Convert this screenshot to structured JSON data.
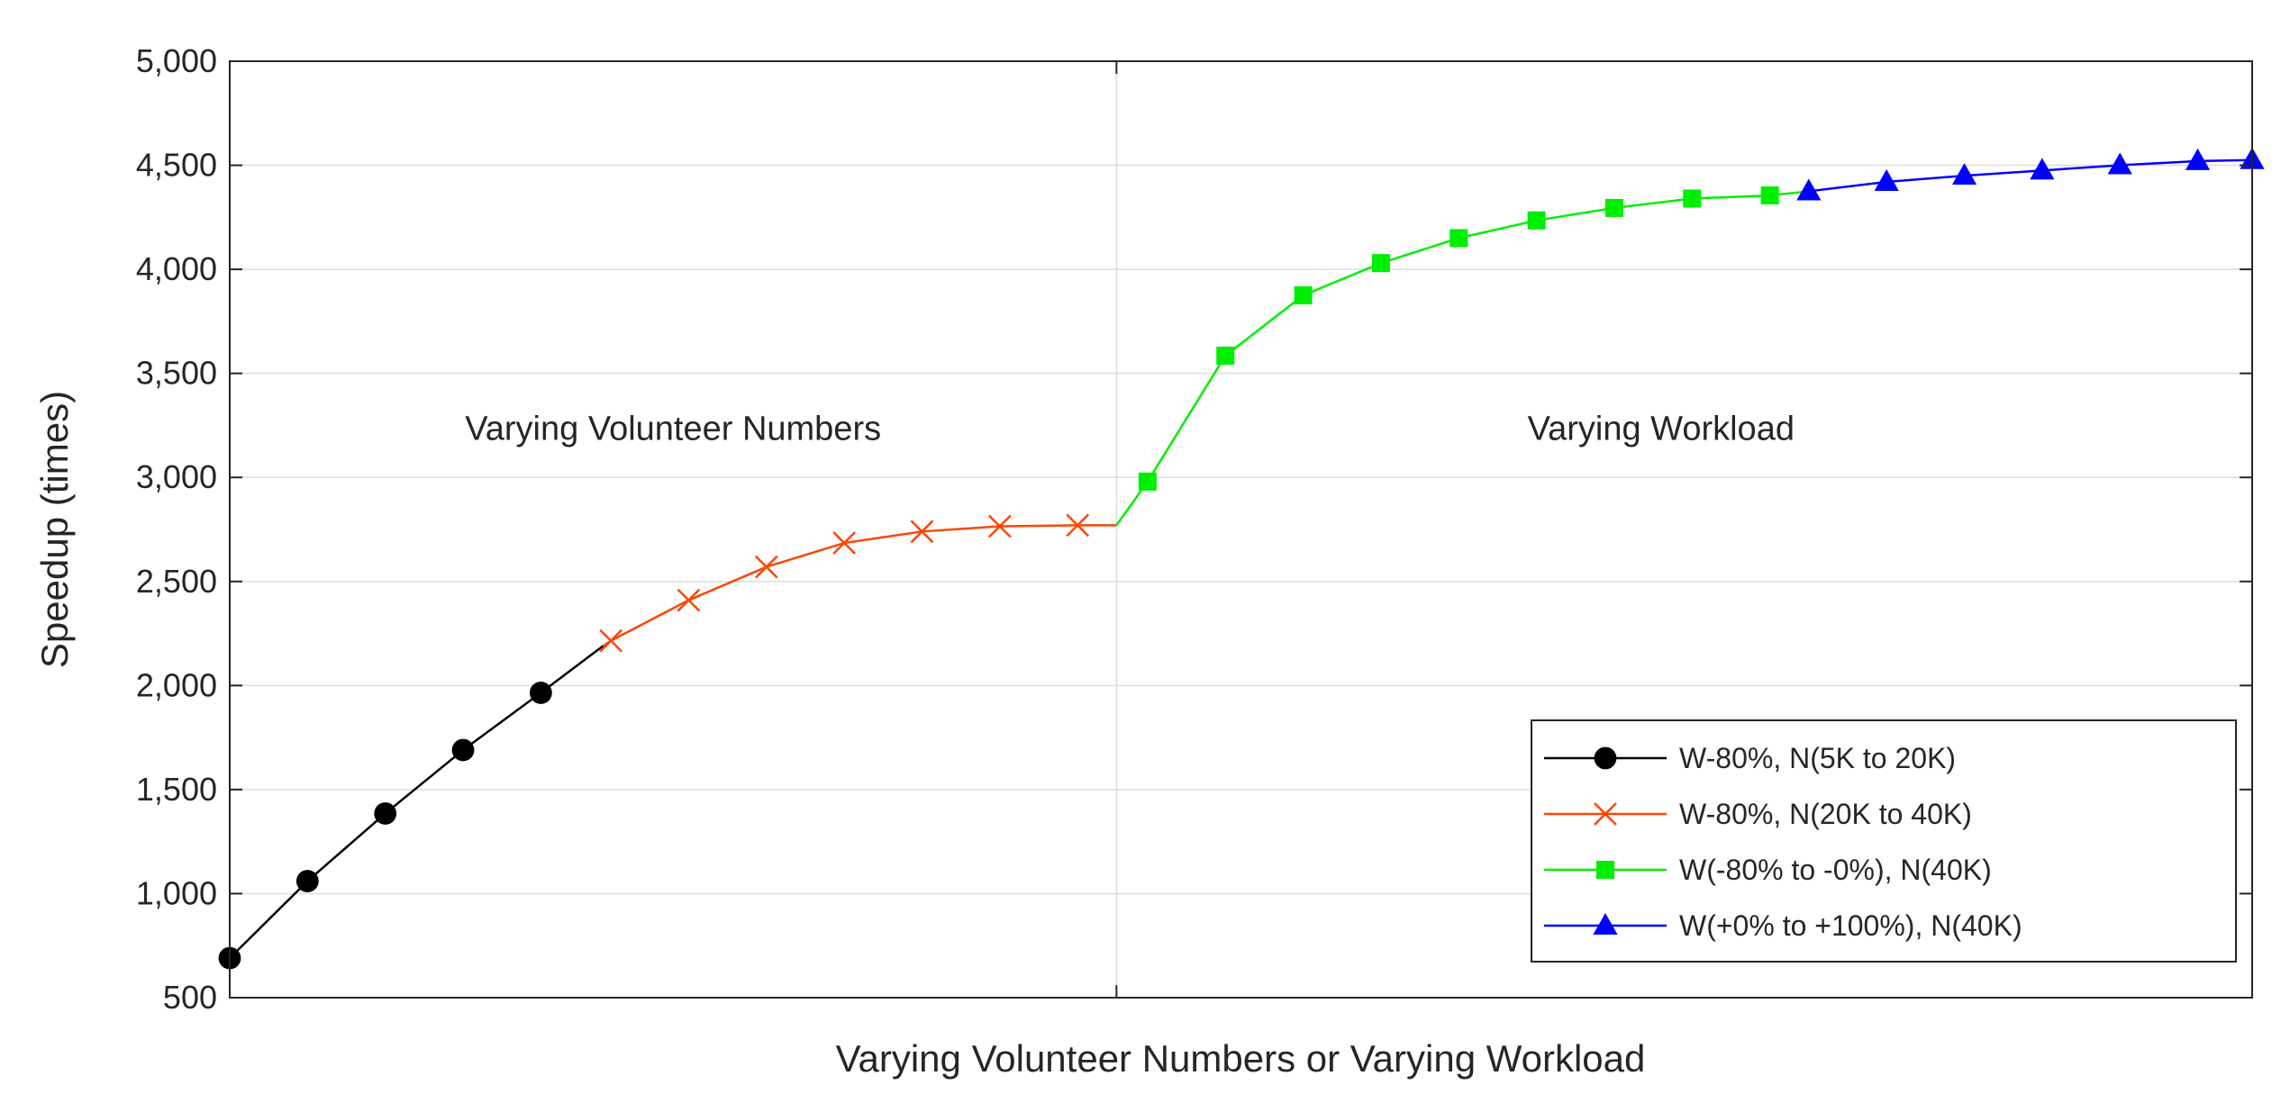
{
  "chart_data": {
    "type": "line",
    "title": "",
    "xlabel": "Varying Volunteer Numbers or Varying Workload",
    "ylabel": "Speedup (times)",
    "ylim": [
      500,
      5000
    ],
    "xlim": [
      0,
      26
    ],
    "y_ticks": [
      500,
      1000,
      1500,
      2000,
      2500,
      3000,
      3500,
      4000,
      4500,
      5000
    ],
    "y_tick_labels": [
      "500",
      "1,000",
      "1,500",
      "2,000",
      "2,500",
      "3,000",
      "3,500",
      "4,000",
      "4,500",
      "5,000"
    ],
    "grid": true,
    "legend_position": "bottom-right",
    "divider_x": 11.4,
    "annotations": [
      {
        "text": "Varying Volunteer Numbers",
        "x": 5.7,
        "y": 3180
      },
      {
        "text": "Varying Workload",
        "x": 18.4,
        "y": 3180
      }
    ],
    "series": [
      {
        "name": "W-80%, N(5K to 20K)",
        "color": "#000000",
        "marker": "circle",
        "x": [
          0,
          1,
          2,
          3,
          4
        ],
        "y": [
          690,
          1060,
          1385,
          1690,
          1965
        ],
        "line_x": [
          0,
          1,
          2,
          3,
          4,
          4.8
        ],
        "line_y": [
          690,
          1060,
          1385,
          1690,
          1965,
          2190
        ]
      },
      {
        "name": "W-80%, N(20K to 40K)",
        "color": "#ff4500",
        "marker": "x",
        "x": [
          4.9,
          5.9,
          6.9,
          7.9,
          8.9,
          9.9,
          10.9
        ],
        "y": [
          2215,
          2410,
          2570,
          2685,
          2740,
          2765,
          2770
        ],
        "line_x": [
          4.8,
          4.9,
          5.9,
          6.9,
          7.9,
          8.9,
          9.9,
          10.9,
          11.4
        ],
        "line_y": [
          2190,
          2215,
          2410,
          2570,
          2685,
          2740,
          2765,
          2770,
          2770
        ]
      },
      {
        "name": "W(-80% to -0%), N(40K)",
        "color": "#00ee00",
        "marker": "square",
        "x": [
          11.8,
          12.8,
          13.8,
          14.8,
          15.8,
          16.8,
          17.8,
          18.8,
          19.8
        ],
        "y": [
          2980,
          3585,
          3875,
          4030,
          4150,
          4235,
          4295,
          4340,
          4355
        ],
        "line_x": [
          11.4,
          11.8,
          12.8,
          13.8,
          14.8,
          15.8,
          16.8,
          17.8,
          18.8,
          19.8,
          20.3
        ],
        "line_y": [
          2770,
          2980,
          3585,
          3875,
          4030,
          4150,
          4235,
          4295,
          4340,
          4355,
          4375
        ]
      },
      {
        "name": "W(+0% to +100%), N(40K)",
        "color": "#0000ff",
        "marker": "triangle",
        "x": [
          20.3,
          21.3,
          22.3,
          23.3,
          24.3,
          25.3,
          26
        ],
        "y": [
          4375,
          4420,
          4450,
          4475,
          4500,
          4520,
          4525
        ],
        "line_x": [
          20.3,
          21.3,
          22.3,
          23.3,
          24.3,
          25.3,
          26
        ],
        "line_y": [
          4375,
          4420,
          4450,
          4475,
          4500,
          4520,
          4525
        ]
      }
    ]
  }
}
